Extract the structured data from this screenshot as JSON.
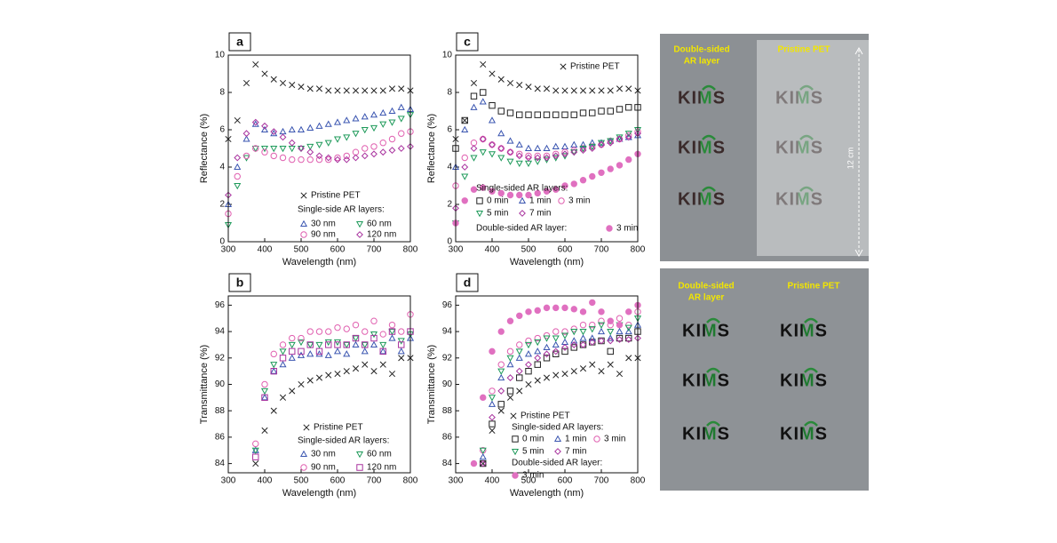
{
  "chart_data": [
    {
      "type": "scatter",
      "panel": "a",
      "xlabel": "Wavelength (nm)",
      "ylabel": "Reflectance (%)",
      "xlim": [
        300,
        800
      ],
      "xticks": [
        300,
        400,
        500,
        600,
        700,
        800
      ],
      "ylim": [
        0,
        10
      ],
      "yticks": [
        0,
        2,
        4,
        6,
        8,
        10
      ],
      "x": [
        300,
        325,
        350,
        375,
        400,
        425,
        450,
        475,
        500,
        525,
        550,
        575,
        600,
        625,
        650,
        675,
        700,
        725,
        750,
        775,
        800
      ],
      "legend_titles": [
        "Single-side AR layers:"
      ],
      "series": [
        {
          "name": "Pristine PET",
          "color": "#222222",
          "marker": "x",
          "values": [
            5.5,
            6.5,
            8.5,
            9.5,
            9,
            8.7,
            8.5,
            8.4,
            8.3,
            8.2,
            8.2,
            8.1,
            8.1,
            8.1,
            8.1,
            8.1,
            8.1,
            8.1,
            8.2,
            8.2,
            8.1
          ]
        },
        {
          "name": "30 nm",
          "color": "#3a55b0",
          "marker": "triangle",
          "values": [
            2,
            4,
            5.5,
            6.3,
            6,
            5.8,
            5.9,
            6,
            6,
            6.1,
            6.2,
            6.3,
            6.4,
            6.5,
            6.6,
            6.7,
            6.8,
            6.9,
            7,
            7.2,
            7.1
          ]
        },
        {
          "name": "60 nm",
          "color": "#1e9a5a",
          "marker": "triangle-down",
          "values": [
            0.9,
            3,
            4.5,
            5,
            5,
            5,
            5,
            5,
            5,
            5.1,
            5.2,
            5.3,
            5.5,
            5.6,
            5.8,
            6,
            6.1,
            6.3,
            6.4,
            6.6,
            6.8
          ]
        },
        {
          "name": "90 nm",
          "color": "#e060b0",
          "marker": "circle",
          "values": [
            1.5,
            3.5,
            4.6,
            5,
            4.8,
            4.6,
            4.5,
            4.4,
            4.4,
            4.4,
            4.4,
            4.4,
            4.5,
            4.6,
            4.8,
            5,
            5.1,
            5.3,
            5.5,
            5.8,
            5.9
          ]
        },
        {
          "name": "120 nm",
          "color": "#a8329e",
          "marker": "diamond",
          "values": [
            2.5,
            4.5,
            5.8,
            6.4,
            6.2,
            5.9,
            5.6,
            5.3,
            5,
            4.8,
            4.6,
            4.5,
            4.4,
            4.4,
            4.5,
            4.6,
            4.7,
            4.8,
            4.9,
            5,
            5.1
          ]
        }
      ]
    },
    {
      "type": "scatter",
      "panel": "b",
      "xlabel": "Wavelength (nm)",
      "ylabel": "Transmittance (%)",
      "xlim": [
        300,
        800
      ],
      "xticks": [
        300,
        400,
        500,
        600,
        700,
        800
      ],
      "ylim": [
        83.3,
        96.7
      ],
      "yticks": [
        84,
        86,
        88,
        90,
        92,
        94,
        96
      ],
      "x": [
        300,
        325,
        350,
        375,
        400,
        425,
        450,
        475,
        500,
        525,
        550,
        575,
        600,
        625,
        650,
        675,
        700,
        725,
        750,
        775,
        800
      ],
      "legend_titles": [
        "Single-sided AR layers:"
      ],
      "series": [
        {
          "name": "Pristine PET",
          "color": "#222222",
          "marker": "x",
          "values": [
            null,
            null,
            null,
            84,
            86.5,
            88,
            89,
            89.5,
            90,
            90.3,
            90.5,
            90.7,
            90.8,
            91,
            91.2,
            91.5,
            91,
            91.5,
            90.8,
            92,
            92
          ]
        },
        {
          "name": "30 nm",
          "color": "#3a55b0",
          "marker": "triangle",
          "values": [
            null,
            null,
            null,
            85,
            89,
            91,
            91.5,
            92,
            92.2,
            92.3,
            92.3,
            92.2,
            92.5,
            92.3,
            93,
            92.5,
            93,
            92.5,
            93.5,
            92.5,
            93.5
          ]
        },
        {
          "name": "60 nm",
          "color": "#1e9a5a",
          "marker": "triangle-down",
          "values": [
            null,
            null,
            null,
            85,
            89.5,
            91.5,
            92.5,
            93,
            93.2,
            93,
            93,
            93.2,
            93.2,
            93,
            93.5,
            93,
            93.8,
            93,
            94,
            93.3,
            93.8
          ]
        },
        {
          "name": "90 nm",
          "color": "#e060b0",
          "marker": "circle",
          "values": [
            null,
            null,
            null,
            85.5,
            90,
            92.3,
            93,
            93.5,
            93.5,
            94,
            94,
            94,
            94.3,
            94.2,
            94.5,
            94,
            94.8,
            93.8,
            94.5,
            94,
            95.3
          ]
        },
        {
          "name": "120 nm",
          "color": "#a8329e",
          "marker": "square",
          "values": [
            null,
            null,
            null,
            84.5,
            89,
            91,
            92,
            92.5,
            92.5,
            93,
            92.5,
            93,
            93,
            93,
            93.5,
            93,
            93.5,
            92.5,
            94,
            93,
            94
          ]
        }
      ]
    },
    {
      "type": "scatter",
      "panel": "c",
      "xlabel": "Wavelength (nm)",
      "ylabel": "Reflectance (%)",
      "xlim": [
        300,
        800
      ],
      "xticks": [
        300,
        400,
        500,
        600,
        700,
        800
      ],
      "ylim": [
        0,
        10
      ],
      "yticks": [
        0,
        2,
        4,
        6,
        8,
        10
      ],
      "x": [
        300,
        325,
        350,
        375,
        400,
        425,
        450,
        475,
        500,
        525,
        550,
        575,
        600,
        625,
        650,
        675,
        700,
        725,
        750,
        775,
        800
      ],
      "legend_titles": [
        "Single-sided AR layers:",
        "Double-sided AR layer:"
      ],
      "series": [
        {
          "name": "Pristine PET",
          "color": "#222222",
          "marker": "x",
          "values": [
            5.5,
            6.5,
            8.5,
            9.5,
            9,
            8.7,
            8.5,
            8.4,
            8.3,
            8.2,
            8.2,
            8.1,
            8.1,
            8.1,
            8.1,
            8.1,
            8.1,
            8.1,
            8.2,
            8.2,
            8.1
          ]
        },
        {
          "name": "0 min",
          "color": "#222222",
          "marker": "square",
          "values": [
            5,
            6.5,
            7.8,
            8,
            7.3,
            7,
            6.9,
            6.8,
            6.8,
            6.8,
            6.8,
            6.8,
            6.8,
            6.8,
            6.9,
            6.9,
            7,
            7,
            7.1,
            7.2,
            7.2
          ]
        },
        {
          "name": "1 min",
          "color": "#3a55b0",
          "marker": "triangle",
          "values": [
            4,
            6,
            7.2,
            7.5,
            6.5,
            5.8,
            5.4,
            5.2,
            5,
            5,
            5,
            5.1,
            5.1,
            5.2,
            5.2,
            5.3,
            5.3,
            5.4,
            5.5,
            5.6,
            5.7
          ]
        },
        {
          "name": "3 min",
          "color": "#e060b0",
          "marker": "circle",
          "values": [
            3,
            4.5,
            5.3,
            5.5,
            5.2,
            5,
            4.8,
            4.7,
            4.6,
            4.6,
            4.6,
            4.7,
            4.8,
            4.9,
            5,
            5.1,
            5.2,
            5.4,
            5.5,
            5.7,
            5.9
          ]
        },
        {
          "name": "5 min",
          "color": "#1e9a5a",
          "marker": "triangle-down",
          "values": [
            1,
            3.5,
            4.5,
            4.8,
            4.7,
            4.5,
            4.3,
            4.2,
            4.2,
            4.3,
            4.4,
            4.5,
            4.6,
            4.8,
            5,
            5.1,
            5.3,
            5.4,
            5.6,
            5.8,
            6
          ]
        },
        {
          "name": "7 min",
          "color": "#a8329e",
          "marker": "diamond",
          "values": [
            1.8,
            4,
            5,
            5.5,
            5.2,
            5,
            4.8,
            4.6,
            4.5,
            4.5,
            4.5,
            4.6,
            4.7,
            4.8,
            4.9,
            5,
            5.2,
            5.3,
            5.5,
            5.6,
            5.8
          ]
        },
        {
          "name": "3 min",
          "color": "#e070c0",
          "marker": "circle-filled",
          "values": [
            1,
            2.2,
            2.8,
            2.9,
            2.7,
            2.6,
            2.5,
            2.5,
            2.5,
            2.6,
            2.7,
            2.8,
            3,
            3.1,
            3.3,
            3.5,
            3.7,
            3.9,
            4.1,
            4.4,
            4.7
          ]
        }
      ]
    },
    {
      "type": "scatter",
      "panel": "d",
      "xlabel": "Wavelength (nm)",
      "ylabel": "Transmittance (%)",
      "xlim": [
        300,
        800
      ],
      "xticks": [
        300,
        400,
        500,
        600,
        700,
        800
      ],
      "ylim": [
        83.3,
        96.7
      ],
      "yticks": [
        84,
        86,
        88,
        90,
        92,
        94,
        96
      ],
      "x": [
        300,
        325,
        350,
        375,
        400,
        425,
        450,
        475,
        500,
        525,
        550,
        575,
        600,
        625,
        650,
        675,
        700,
        725,
        750,
        775,
        800
      ],
      "legend_titles": [
        "Single-sided AR layers:",
        "Double-sided AR layer:"
      ],
      "series": [
        {
          "name": "Pristine PET",
          "color": "#222222",
          "marker": "x",
          "values": [
            null,
            null,
            null,
            84,
            86.5,
            88,
            89,
            89.5,
            90,
            90.3,
            90.5,
            90.7,
            90.8,
            91,
            91.2,
            91.5,
            91,
            91.5,
            90.8,
            92,
            92
          ]
        },
        {
          "name": "0 min",
          "color": "#222222",
          "marker": "square",
          "values": [
            null,
            null,
            null,
            84,
            87,
            88.5,
            89.5,
            90.5,
            91,
            91.5,
            92,
            92.3,
            92.5,
            92.8,
            93,
            93.2,
            93.3,
            92.5,
            93.5,
            93.5,
            94
          ]
        },
        {
          "name": "1 min",
          "color": "#3a55b0",
          "marker": "triangle",
          "values": [
            null,
            null,
            null,
            84.5,
            88.5,
            90.5,
            91.5,
            92,
            92.3,
            92.5,
            92.8,
            93,
            93.2,
            93.3,
            93.5,
            93.5,
            94,
            93.5,
            94,
            94,
            94.5
          ]
        },
        {
          "name": "3 min",
          "color": "#e060b0",
          "marker": "circle",
          "values": [
            null,
            null,
            null,
            85,
            89.5,
            91.5,
            92.5,
            93,
            93.3,
            93.5,
            93.7,
            94,
            94,
            94.2,
            94.5,
            94.5,
            94.8,
            94.5,
            95,
            94.5,
            95.5
          ]
        },
        {
          "name": "5 min",
          "color": "#1e9a5a",
          "marker": "triangle-down",
          "values": [
            null,
            null,
            null,
            85,
            89,
            91,
            92,
            92.5,
            93,
            93.2,
            93.5,
            93.5,
            93.7,
            94,
            94,
            94.2,
            94.5,
            94,
            94.5,
            94.3,
            95
          ]
        },
        {
          "name": "7 min",
          "color": "#a8329e",
          "marker": "diamond",
          "values": [
            null,
            null,
            null,
            84,
            87.5,
            89.5,
            90.5,
            91,
            91.5,
            92,
            92.3,
            92.5,
            92.8,
            93,
            93,
            93.2,
            93.3,
            93.3,
            93.4,
            93.4,
            93.5
          ]
        },
        {
          "name": "3 min",
          "color": "#e070c0",
          "marker": "circle-filled",
          "values": [
            null,
            null,
            84,
            89,
            92.5,
            94,
            94.8,
            95.2,
            95.5,
            95.6,
            95.8,
            95.8,
            95.8,
            95.7,
            95.5,
            96.2,
            95.5,
            94.8,
            94.5,
            95.5,
            96
          ]
        }
      ]
    }
  ],
  "photos": [
    {
      "left_label": [
        "Double-sided",
        "AR layer"
      ],
      "right_label": "Pristine PET",
      "left_logos": [
        "KIMS",
        "KIMS",
        "KIMS"
      ],
      "right_logos": [
        "KIMS",
        "KIMS",
        "KIMS"
      ],
      "scale_label": "12 cm"
    },
    {
      "left_label": [
        "Double-sided",
        "AR layer"
      ],
      "right_label": "Pristine PET",
      "left_logos": [
        "KIMS",
        "KIMS",
        "KIMS"
      ],
      "right_logos": [
        "KIMS",
        "KIMS",
        "KIMS"
      ]
    }
  ]
}
